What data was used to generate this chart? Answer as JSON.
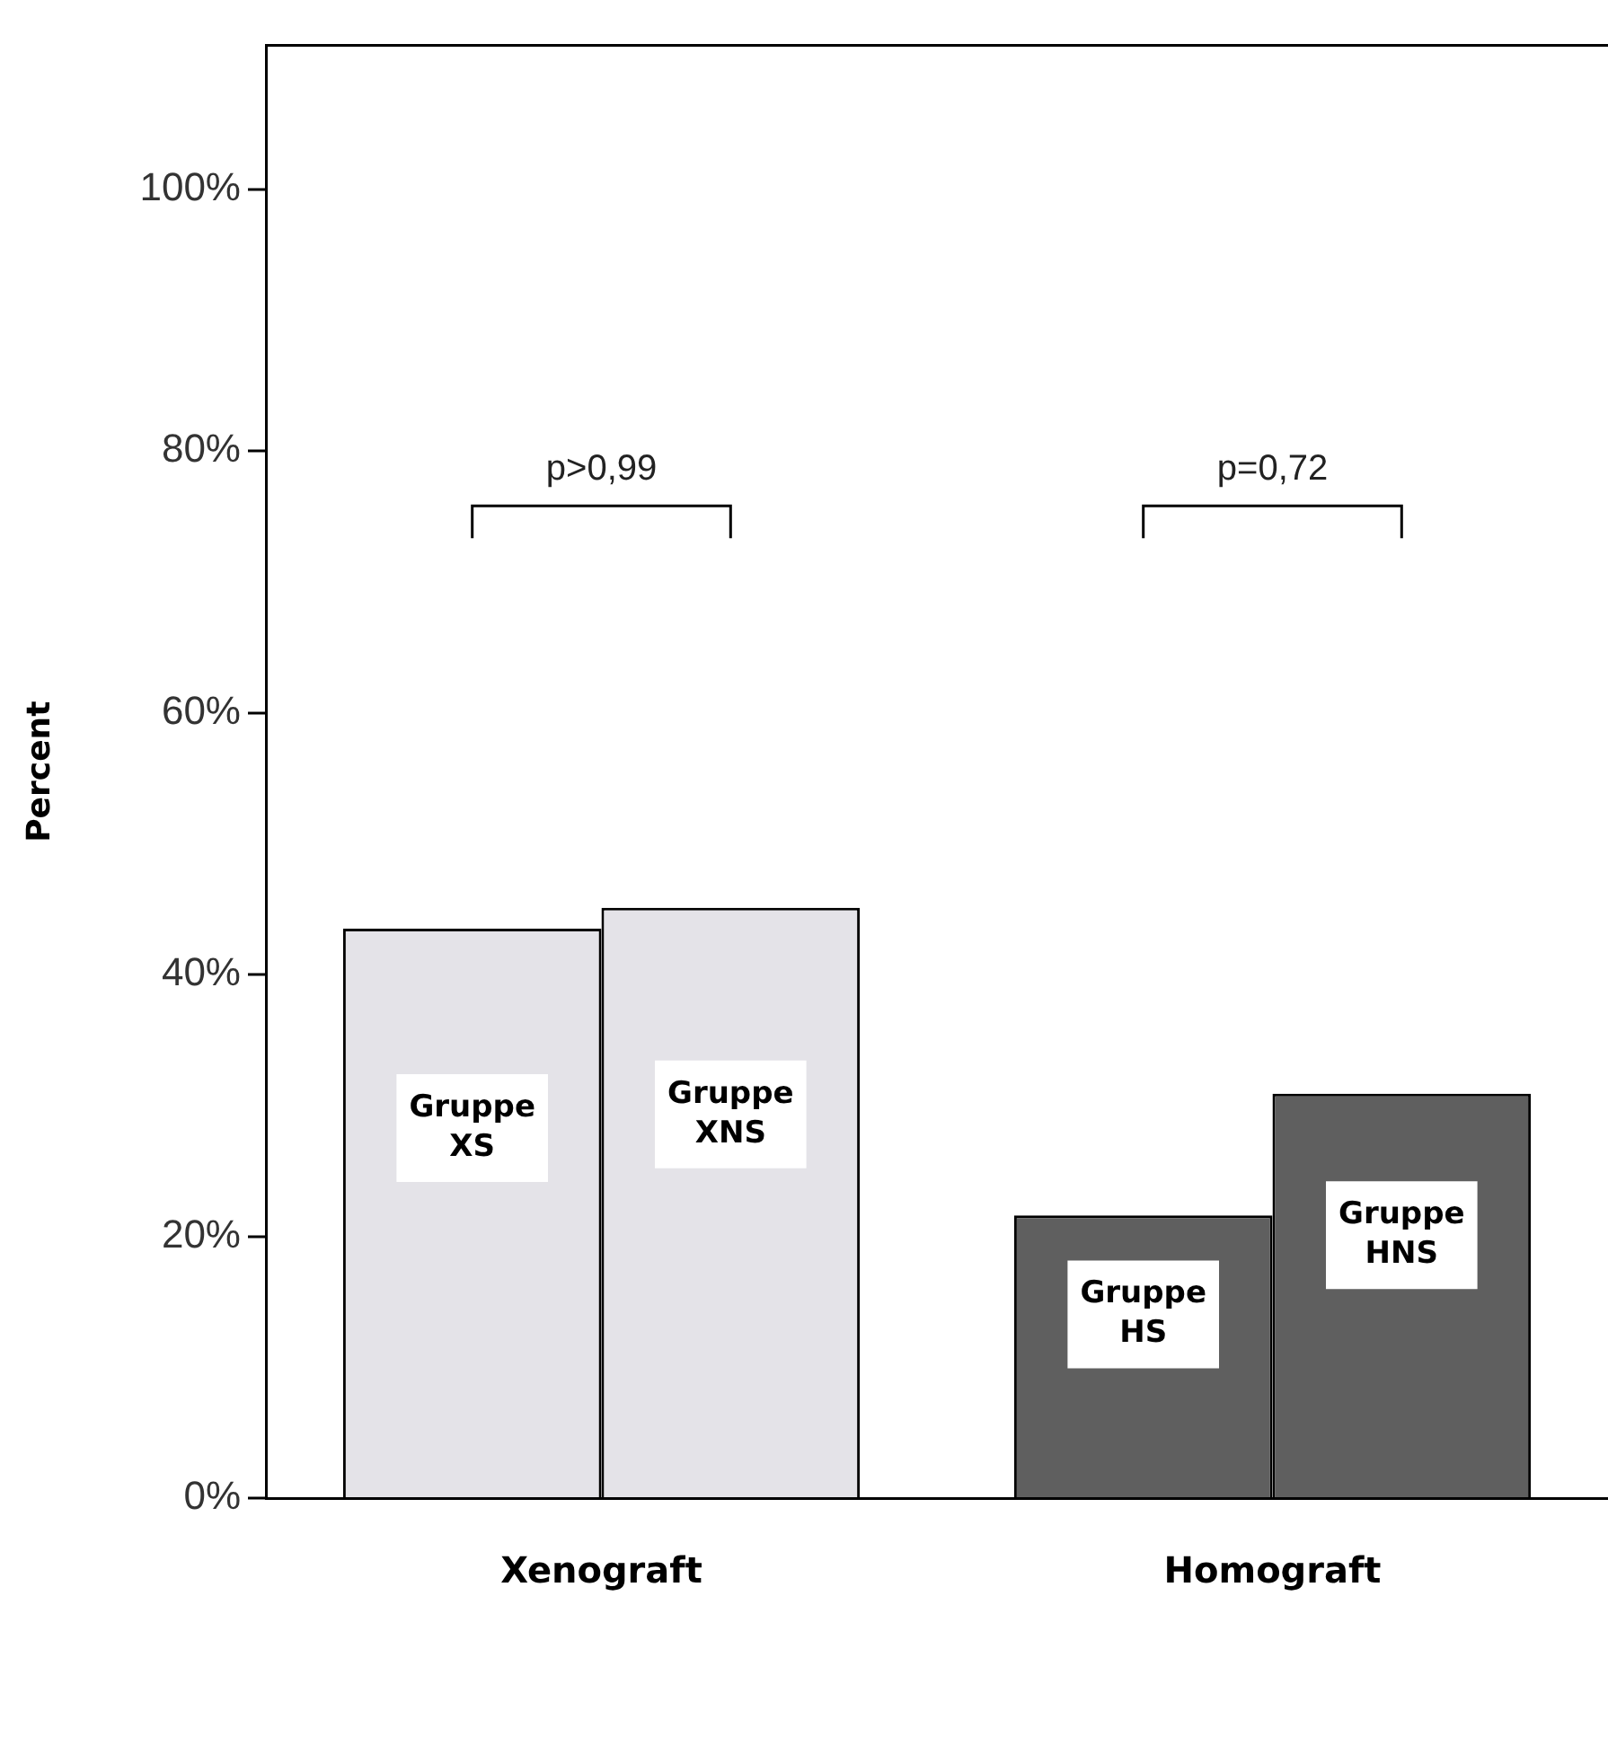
{
  "chart_data": {
    "type": "bar",
    "ylabel": "Percent",
    "categories": [
      "Xenograft",
      "Homograft"
    ],
    "series": [
      {
        "colors": [
          "#e4e3e8",
          "#5f5f5f"
        ],
        "values": [
          43.5,
          21.6
        ],
        "value_labels": [
          "Gruppe XS",
          "Gruppe HS"
        ]
      },
      {
        "colors": [
          "#e4e3e8",
          "#5f5f5f"
        ],
        "values": [
          45.1,
          30.9
        ],
        "value_labels": [
          "Gruppe XNS",
          "Gruppe HNS"
        ]
      }
    ],
    "ylim": [
      0,
      111
    ],
    "yticks": [
      {
        "value": 0,
        "label": "0%"
      },
      {
        "value": 20,
        "label": "20%"
      },
      {
        "value": 40,
        "label": "40%"
      },
      {
        "value": 60,
        "label": "60%"
      },
      {
        "value": 80,
        "label": "80%"
      },
      {
        "value": 100,
        "label": "100%"
      }
    ],
    "annotations": [
      "p>0,99",
      "p=0,72"
    ],
    "grid": false,
    "legend": false
  }
}
